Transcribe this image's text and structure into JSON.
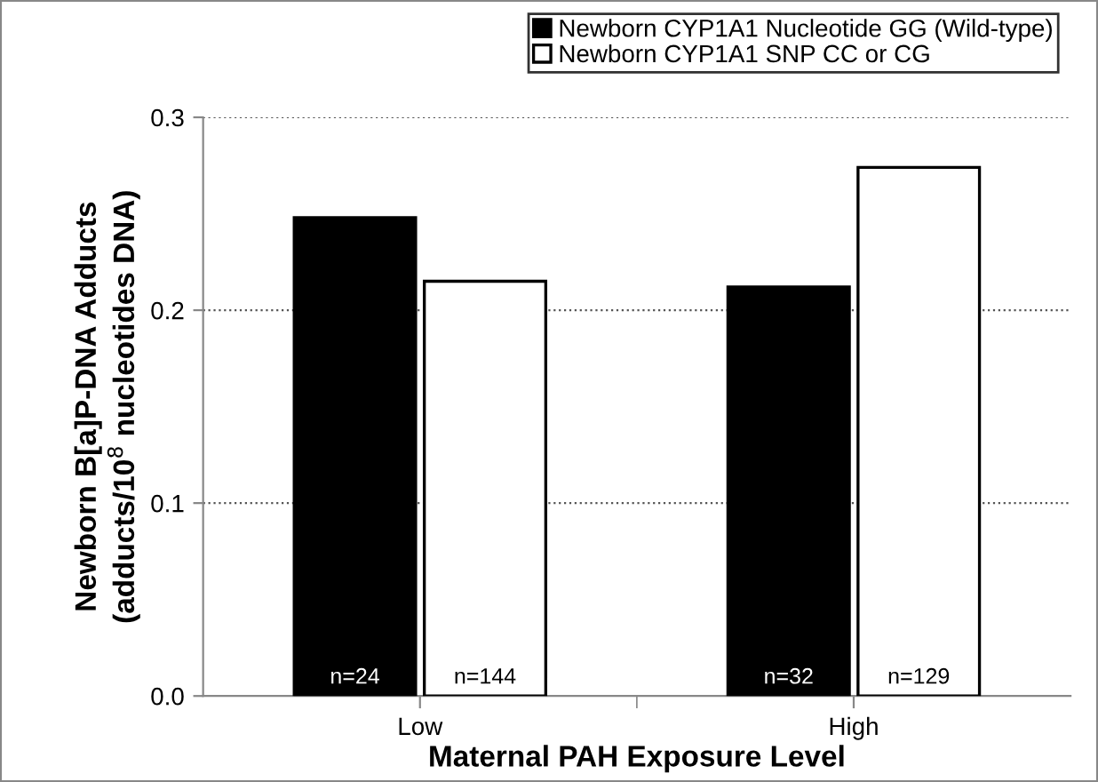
{
  "chart_data": {
    "type": "bar",
    "xlabel": "Maternal PAH Exposure Level",
    "ylabel": "Newborn B[a]P-DNA Adducts\n(adducts/10$^{8}$ nucleotides DNA)",
    "categories": [
      "Low",
      "High"
    ],
    "series": [
      {
        "name": "Newborn CYP1A1 Nucleotide GG (Wild-type)",
        "color": "#000000",
        "values": [
          0.248,
          0.212
        ]
      },
      {
        "name": "Newborn CYP1A1 SNP CC or CG",
        "color": "#ffffff",
        "values": [
          0.215,
          0.274
        ]
      }
    ],
    "ylim": [
      0,
      0.3
    ],
    "yticks": [
      {
        "value": 0,
        "label": "0.0"
      },
      {
        "value": 0.1,
        "label": "0.1"
      },
      {
        "value": 0.2,
        "label": "0.2"
      },
      {
        "value": 0.3,
        "label": "0.3"
      }
    ],
    "annotations": [
      "n=24",
      "n=144",
      "n=32",
      "n=129"
    ],
    "grid": "y",
    "legend": "top right"
  }
}
